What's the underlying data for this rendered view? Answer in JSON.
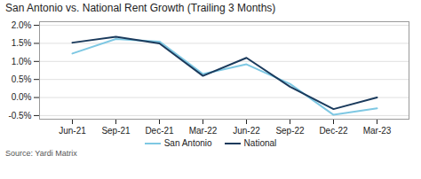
{
  "chart_data": {
    "type": "line",
    "title": "San Antonio vs. National Rent Growth (Trailing 3 Months)",
    "source": "Source: Yardi Matrix",
    "categories": [
      "Jun-21",
      "Sep-21",
      "Dec-21",
      "Mar-22",
      "Jun-22",
      "Sep-22",
      "Dec-22",
      "Mar-23"
    ],
    "series": [
      {
        "name": "San Antonio",
        "color": "#7ec8e3",
        "values": [
          1.22,
          1.62,
          1.55,
          0.65,
          0.92,
          0.38,
          -0.48,
          -0.3
        ]
      },
      {
        "name": "National",
        "color": "#1a3a5c",
        "values": [
          1.52,
          1.68,
          1.5,
          0.6,
          1.1,
          0.3,
          -0.32,
          0.0
        ]
      }
    ],
    "ylim": [
      -0.6,
      2.1
    ],
    "yticks": [
      {
        "value": -0.5,
        "label": "-0.5%"
      },
      {
        "value": 0.0,
        "label": "0.0%"
      },
      {
        "value": 0.5,
        "label": "0.5%"
      },
      {
        "value": 1.0,
        "label": "1.0%"
      },
      {
        "value": 1.5,
        "label": "1.5%"
      },
      {
        "value": 2.0,
        "label": "2.0%"
      }
    ],
    "grid": true,
    "legend": "bottom"
  }
}
